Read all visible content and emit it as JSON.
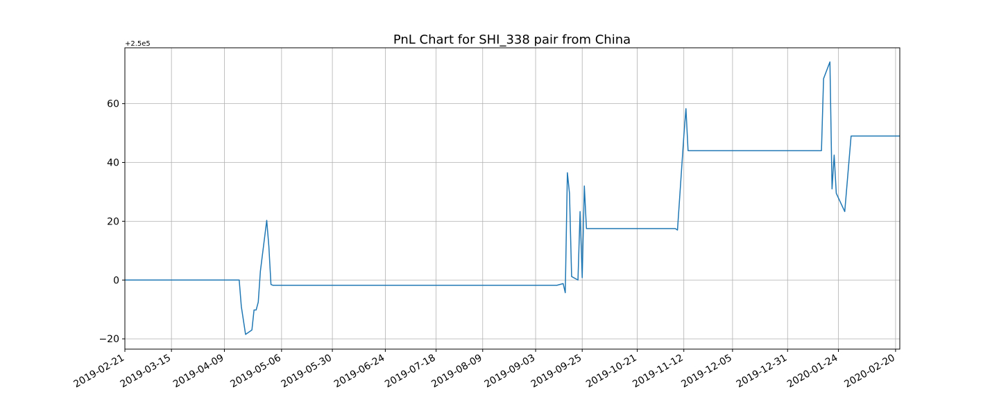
{
  "chart_data": {
    "type": "line",
    "title": "PnL Chart for SHI_338 pair from China",
    "y_offset_label": "+2.5e5",
    "y_offset": 250000,
    "xlabel": "",
    "ylabel": "",
    "grid": true,
    "legend": "none",
    "line_color": "#1f77b4",
    "xlim": [
      "2019-02-21",
      "2020-02-22"
    ],
    "ylim": [
      -23.5,
      79
    ],
    "y_ticks": [
      -20,
      0,
      20,
      40,
      60
    ],
    "y_tick_labels": [
      "−20",
      "0",
      "20",
      "40",
      "60"
    ],
    "x_ticks": [
      "2019-02-21",
      "2019-03-15",
      "2019-04-09",
      "2019-05-06",
      "2019-05-30",
      "2019-06-24",
      "2019-07-18",
      "2019-08-09",
      "2019-09-03",
      "2019-09-25",
      "2019-10-21",
      "2019-11-12",
      "2019-12-05",
      "2019-12-31",
      "2020-01-24",
      "2020-02-20"
    ],
    "series": [
      {
        "x": [
          "2019-02-21",
          "2019-04-16",
          "2019-04-17",
          "2019-04-19",
          "2019-04-22",
          "2019-04-23",
          "2019-04-24",
          "2019-04-25",
          "2019-04-26",
          "2019-04-29",
          "2019-04-30",
          "2019-05-01",
          "2019-05-02",
          "2019-09-13",
          "2019-09-16",
          "2019-09-17",
          "2019-09-18",
          "2019-09-19",
          "2019-09-20",
          "2019-09-23",
          "2019-09-24",
          "2019-09-25",
          "2019-09-26",
          "2019-09-27",
          "2019-09-30",
          "2019-11-08",
          "2019-11-09",
          "2019-11-12",
          "2019-11-13",
          "2019-11-14",
          "2019-11-15",
          "2020-01-16",
          "2020-01-17",
          "2020-01-20",
          "2020-01-21",
          "2020-01-22",
          "2020-01-23",
          "2020-01-27",
          "2020-01-30",
          "2020-02-22"
        ],
        "y": [
          250000.0,
          250000.0,
          249991.0,
          249981.5,
          249983.0,
          249989.8,
          249989.8,
          249992.5,
          250003.0,
          250020.3,
          250011.5,
          249998.5,
          249998.2,
          249998.2,
          249998.8,
          249995.7,
          250036.5,
          250029.5,
          250001.2,
          250000.0,
          250023.3,
          250000.8,
          250032.0,
          250017.5,
          250017.5,
          250017.5,
          250017.0,
          250049.0,
          250058.3,
          250044.0,
          250044.0,
          250044.0,
          250068.5,
          250074.2,
          250031.0,
          250042.5,
          250029.5,
          250023.3,
          250049.0,
          250049.0
        ]
      }
    ]
  }
}
